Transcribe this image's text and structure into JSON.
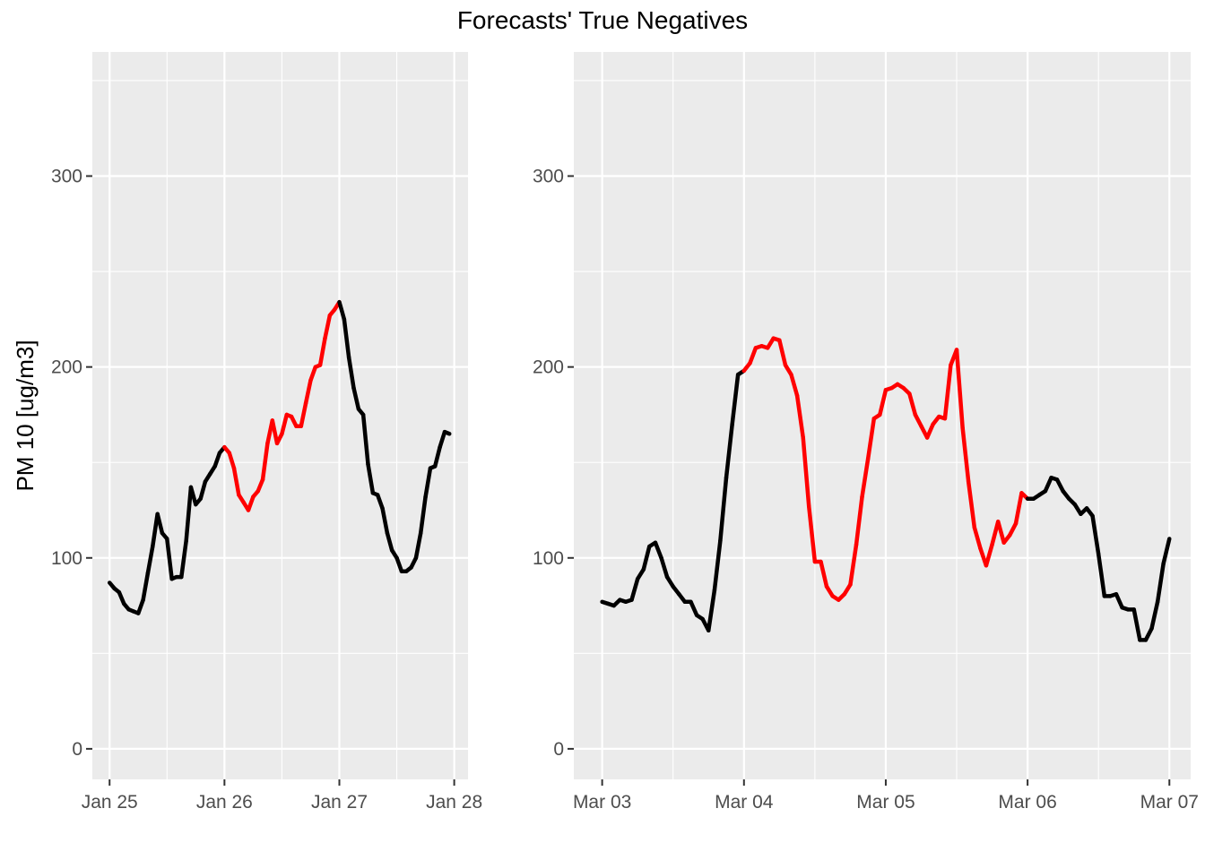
{
  "chart_data": {
    "type": "line",
    "title": "Forecasts' True Negatives",
    "ylabel": "PM 10 [ug/m3]",
    "ylim": [
      -16,
      365
    ],
    "y_ticks": [
      0,
      100,
      200,
      300
    ],
    "y_tick_labels": [
      "0",
      "100",
      "200",
      "300"
    ],
    "grid": true,
    "colors": {
      "panel_bg": "#ebebeb",
      "grid": "#ffffff",
      "normal": "#000000",
      "highlight": "#ff0000"
    },
    "panels": [
      {
        "x_unit": "days since Jan 25",
        "xlim": [
          -0.15,
          3.12
        ],
        "x_ticks": [
          0,
          1,
          2,
          3
        ],
        "x_tick_labels": [
          "Jan 25",
          "Jan 26",
          "Jan 27",
          "Jan 28"
        ],
        "highlight_range": [
          1,
          2
        ],
        "points": [
          [
            0,
            87
          ],
          [
            0.042,
            84
          ],
          [
            0.083,
            82
          ],
          [
            0.125,
            76
          ],
          [
            0.167,
            73
          ],
          [
            0.208,
            72
          ],
          [
            0.25,
            71
          ],
          [
            0.292,
            78
          ],
          [
            0.333,
            92
          ],
          [
            0.375,
            106
          ],
          [
            0.417,
            123
          ],
          [
            0.458,
            113
          ],
          [
            0.5,
            110
          ],
          [
            0.542,
            89
          ],
          [
            0.583,
            90
          ],
          [
            0.625,
            90
          ],
          [
            0.667,
            109
          ],
          [
            0.708,
            137
          ],
          [
            0.75,
            128
          ],
          [
            0.792,
            131
          ],
          [
            0.833,
            140
          ],
          [
            0.875,
            144
          ],
          [
            0.917,
            148
          ],
          [
            0.958,
            155
          ],
          [
            1.0,
            158
          ],
          [
            1.042,
            155
          ],
          [
            1.083,
            147
          ],
          [
            1.125,
            133
          ],
          [
            1.167,
            129
          ],
          [
            1.208,
            125
          ],
          [
            1.25,
            132
          ],
          [
            1.292,
            135
          ],
          [
            1.333,
            141
          ],
          [
            1.375,
            160
          ],
          [
            1.417,
            172
          ],
          [
            1.458,
            160
          ],
          [
            1.5,
            165
          ],
          [
            1.542,
            175
          ],
          [
            1.583,
            174
          ],
          [
            1.625,
            169
          ],
          [
            1.667,
            169
          ],
          [
            1.708,
            181
          ],
          [
            1.75,
            193
          ],
          [
            1.792,
            200
          ],
          [
            1.833,
            201
          ],
          [
            1.875,
            215
          ],
          [
            1.917,
            227
          ],
          [
            1.958,
            230
          ],
          [
            2.0,
            234
          ],
          [
            2.042,
            225
          ],
          [
            2.083,
            205
          ],
          [
            2.125,
            189
          ],
          [
            2.167,
            178
          ],
          [
            2.208,
            175
          ],
          [
            2.25,
            149
          ],
          [
            2.292,
            134
          ],
          [
            2.333,
            133
          ],
          [
            2.375,
            126
          ],
          [
            2.417,
            113
          ],
          [
            2.458,
            104
          ],
          [
            2.5,
            100
          ],
          [
            2.542,
            93
          ],
          [
            2.583,
            93
          ],
          [
            2.625,
            95
          ],
          [
            2.667,
            100
          ],
          [
            2.708,
            113
          ],
          [
            2.75,
            132
          ],
          [
            2.792,
            147
          ],
          [
            2.833,
            148
          ],
          [
            2.875,
            158
          ],
          [
            2.917,
            166
          ],
          [
            2.958,
            165
          ]
        ]
      },
      {
        "x_unit": "days since Mar 03",
        "xlim": [
          -0.2,
          4.15
        ],
        "x_ticks": [
          0,
          1,
          2,
          3,
          4
        ],
        "x_tick_labels": [
          "Mar 03",
          "Mar 04",
          "Mar 05",
          "Mar 06",
          "Mar 07"
        ],
        "highlight_range": [
          1,
          3
        ],
        "points": [
          [
            0,
            77
          ],
          [
            0.042,
            76
          ],
          [
            0.083,
            75
          ],
          [
            0.125,
            78
          ],
          [
            0.167,
            77
          ],
          [
            0.208,
            78
          ],
          [
            0.25,
            89
          ],
          [
            0.292,
            94
          ],
          [
            0.333,
            106
          ],
          [
            0.375,
            108
          ],
          [
            0.417,
            100
          ],
          [
            0.458,
            90
          ],
          [
            0.5,
            85
          ],
          [
            0.542,
            81
          ],
          [
            0.583,
            77
          ],
          [
            0.625,
            77
          ],
          [
            0.667,
            70
          ],
          [
            0.708,
            68
          ],
          [
            0.75,
            62
          ],
          [
            0.792,
            83
          ],
          [
            0.833,
            109
          ],
          [
            0.875,
            142
          ],
          [
            0.917,
            170
          ],
          [
            0.958,
            196
          ],
          [
            1.0,
            198
          ],
          [
            1.042,
            202
          ],
          [
            1.083,
            210
          ],
          [
            1.125,
            211
          ],
          [
            1.167,
            210
          ],
          [
            1.208,
            215
          ],
          [
            1.25,
            214
          ],
          [
            1.292,
            201
          ],
          [
            1.333,
            196
          ],
          [
            1.375,
            185
          ],
          [
            1.417,
            163
          ],
          [
            1.458,
            127
          ],
          [
            1.5,
            98
          ],
          [
            1.542,
            98
          ],
          [
            1.583,
            85
          ],
          [
            1.625,
            80
          ],
          [
            1.667,
            78
          ],
          [
            1.708,
            81
          ],
          [
            1.75,
            86
          ],
          [
            1.792,
            107
          ],
          [
            1.833,
            132
          ],
          [
            1.875,
            152
          ],
          [
            1.917,
            173
          ],
          [
            1.958,
            175
          ],
          [
            2.0,
            188
          ],
          [
            2.042,
            189
          ],
          [
            2.083,
            191
          ],
          [
            2.125,
            189
          ],
          [
            2.167,
            186
          ],
          [
            2.208,
            175
          ],
          [
            2.25,
            169
          ],
          [
            2.292,
            163
          ],
          [
            2.333,
            170
          ],
          [
            2.375,
            174
          ],
          [
            2.417,
            173
          ],
          [
            2.458,
            201
          ],
          [
            2.5,
            209
          ],
          [
            2.542,
            168
          ],
          [
            2.583,
            140
          ],
          [
            2.625,
            116
          ],
          [
            2.667,
            105
          ],
          [
            2.708,
            96
          ],
          [
            2.75,
            107
          ],
          [
            2.792,
            119
          ],
          [
            2.833,
            108
          ],
          [
            2.875,
            112
          ],
          [
            2.917,
            118
          ],
          [
            2.958,
            134
          ],
          [
            3.0,
            131
          ],
          [
            3.042,
            131
          ],
          [
            3.083,
            133
          ],
          [
            3.125,
            135
          ],
          [
            3.167,
            142
          ],
          [
            3.208,
            141
          ],
          [
            3.25,
            135
          ],
          [
            3.292,
            131
          ],
          [
            3.333,
            128
          ],
          [
            3.375,
            123
          ],
          [
            3.417,
            126
          ],
          [
            3.458,
            122
          ],
          [
            3.5,
            102
          ],
          [
            3.542,
            80
          ],
          [
            3.583,
            80
          ],
          [
            3.625,
            81
          ],
          [
            3.667,
            74
          ],
          [
            3.708,
            73
          ],
          [
            3.75,
            73
          ],
          [
            3.792,
            57
          ],
          [
            3.833,
            57
          ],
          [
            3.875,
            63
          ],
          [
            3.917,
            77
          ],
          [
            3.958,
            97
          ],
          [
            4.0,
            110
          ]
        ]
      }
    ]
  }
}
